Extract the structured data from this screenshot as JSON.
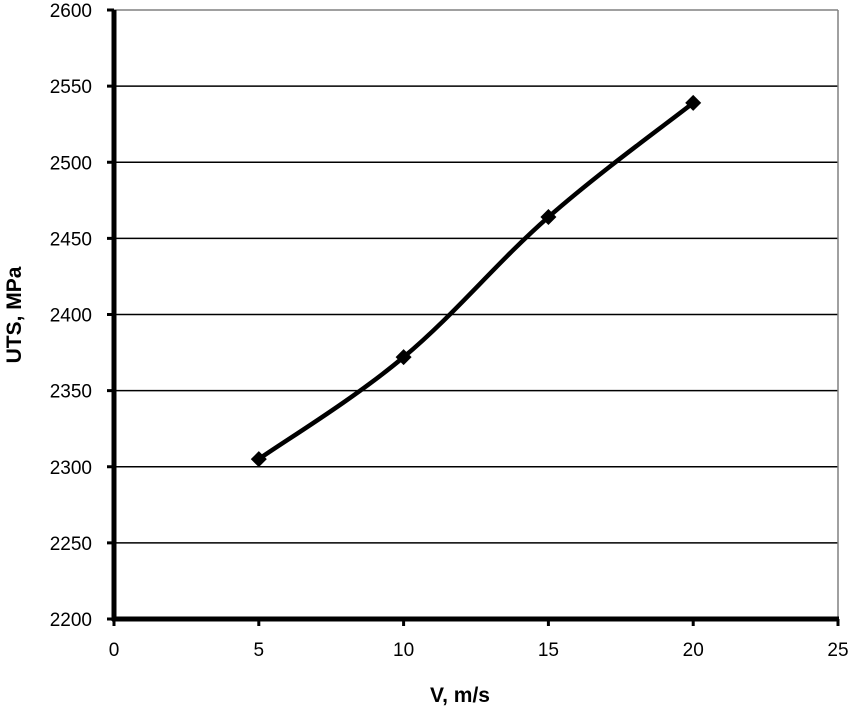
{
  "chart_data": {
    "type": "line",
    "title": "",
    "xlabel": "V, m/s",
    "ylabel": "UTS, MPa",
    "x": [
      5,
      10,
      15,
      20
    ],
    "series": [
      {
        "name": "UTS",
        "values": [
          2305,
          2372,
          2464,
          2539
        ],
        "marker": "diamond",
        "smooth": true,
        "color": "#000000"
      }
    ],
    "xlim": [
      0,
      25
    ],
    "ylim": [
      2200,
      2600
    ],
    "xticks": [
      0,
      5,
      10,
      15,
      20,
      25
    ],
    "yticks": [
      2200,
      2250,
      2300,
      2350,
      2400,
      2450,
      2500,
      2550,
      2600
    ],
    "grid": {
      "horizontal": true,
      "vertical": false
    },
    "legend": null
  },
  "colors": {
    "line": "#000000",
    "gridline": "#000000",
    "plot_border": "#808080",
    "background": "#ffffff"
  }
}
